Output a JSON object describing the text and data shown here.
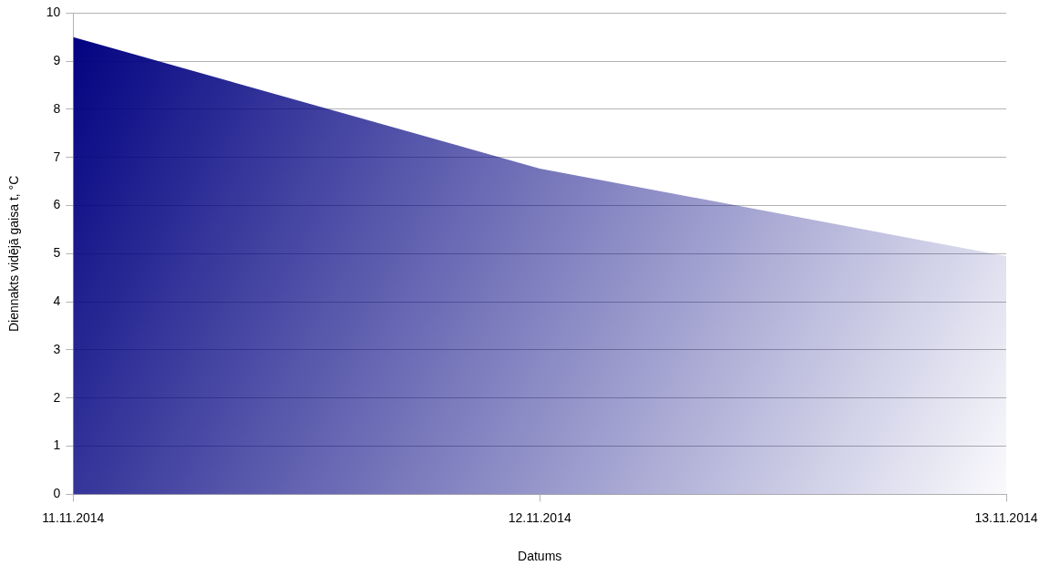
{
  "chart_data": {
    "type": "area",
    "xlabel": "Datums",
    "ylabel": "Diennakts vidējā gaisa t, °C",
    "categories": [
      "11.11.2014",
      "12.11.2014",
      "13.11.2014"
    ],
    "values": [
      9.5,
      6.77,
      4.95
    ],
    "color": "#000080",
    "ylim": [
      0,
      10
    ],
    "yticks": [
      0,
      1,
      2,
      3,
      4,
      5,
      6,
      7,
      8,
      9,
      10
    ],
    "grid": "y"
  }
}
